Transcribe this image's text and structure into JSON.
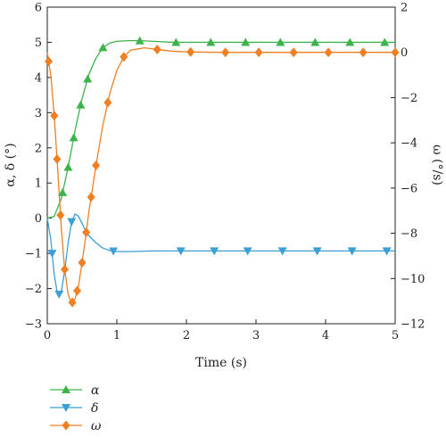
{
  "chart_data": {
    "type": "line",
    "xlabel": "Time (s)",
    "ylabel_left": "α, δ (°)",
    "ylabel_right": "ω (°/s)",
    "xlim": [
      0,
      5
    ],
    "ylim_left": [
      -3,
      6
    ],
    "ylim_right": [
      -12,
      2
    ],
    "xticks": [
      "0",
      "1",
      "2",
      "3",
      "4",
      "5"
    ],
    "yticks_left": [
      "−3",
      "−2",
      "−1",
      "0",
      "1",
      "2",
      "3",
      "4",
      "5",
      "6"
    ],
    "yticks_right": [
      "−12",
      "−10",
      "−8",
      "−6",
      "−4",
      "−2",
      "0",
      "2"
    ],
    "grid": false,
    "legend_position": "bottom-left",
    "series": [
      {
        "name": "α",
        "axis": "left",
        "color": "#3cb44b",
        "marker": "triangle-up",
        "x": [
          0,
          0.1,
          0.2,
          0.3,
          0.4,
          0.5,
          0.6,
          0.7,
          0.8,
          0.9,
          1.0,
          1.2,
          1.4,
          1.6,
          1.8,
          2.0,
          2.5,
          3.0,
          3.5,
          4.0,
          4.5,
          5.0
        ],
        "y": [
          0,
          0.05,
          0.55,
          1.45,
          2.5,
          3.4,
          4.1,
          4.55,
          4.85,
          4.98,
          5.03,
          5.05,
          5.04,
          5.02,
          5.0,
          5.0,
          5.0,
          5.0,
          5.0,
          5.0,
          5.0,
          5.0
        ],
        "marker_x": [
          0.22,
          0.3,
          0.38,
          0.48,
          0.58,
          0.8,
          1.33,
          1.85,
          2.35,
          2.85,
          3.35,
          3.85,
          4.35,
          4.85
        ]
      },
      {
        "name": "δ",
        "axis": "left",
        "color": "#3c9fd6",
        "marker": "triangle-down",
        "x": [
          0,
          0.05,
          0.1,
          0.15,
          0.2,
          0.25,
          0.3,
          0.35,
          0.4,
          0.45,
          0.5,
          0.55,
          0.6,
          0.7,
          0.8,
          0.9,
          1.0,
          1.2,
          1.5,
          2.0,
          2.5,
          3.0,
          3.5,
          4.0,
          4.5,
          5.0
        ],
        "y": [
          0,
          -0.6,
          -1.6,
          -2.2,
          -2.1,
          -1.5,
          -0.7,
          -0.1,
          0.12,
          0.05,
          -0.15,
          -0.35,
          -0.5,
          -0.7,
          -0.85,
          -0.92,
          -0.95,
          -0.95,
          -0.93,
          -0.93,
          -0.93,
          -0.93,
          -0.93,
          -0.93,
          -0.93,
          -0.93
        ],
        "marker_x": [
          0.07,
          0.17,
          0.35,
          0.95,
          1.92,
          2.4,
          2.88,
          3.38,
          3.88,
          4.38,
          4.88
        ]
      },
      {
        "name": "ω",
        "axis": "right",
        "color": "#f07f24",
        "marker": "diamond",
        "x": [
          0,
          0.05,
          0.1,
          0.15,
          0.2,
          0.25,
          0.3,
          0.35,
          0.4,
          0.45,
          0.5,
          0.55,
          0.6,
          0.7,
          0.8,
          0.9,
          1.0,
          1.1,
          1.2,
          1.4,
          1.6,
          1.8,
          2.0,
          2.5,
          3.0,
          3.5,
          4.0,
          4.5,
          5.0
        ],
        "y": [
          0,
          -1.0,
          -2.8,
          -5.2,
          -7.7,
          -9.6,
          -10.7,
          -11.1,
          -10.9,
          -10.3,
          -9.3,
          -8.2,
          -7.0,
          -5.0,
          -3.2,
          -1.8,
          -0.8,
          -0.2,
          0.1,
          0.2,
          0.12,
          0.05,
          0.02,
          0.0,
          0.0,
          0.0,
          0.0,
          0.0,
          0.0
        ],
        "marker_x": [
          0.02,
          0.1,
          0.14,
          0.19,
          0.25,
          0.36,
          0.43,
          0.5,
          0.56,
          0.63,
          0.7,
          0.87,
          1.1,
          1.58,
          2.06,
          2.56,
          3.04,
          3.54,
          4.04,
          4.54,
          5.0
        ]
      }
    ]
  }
}
